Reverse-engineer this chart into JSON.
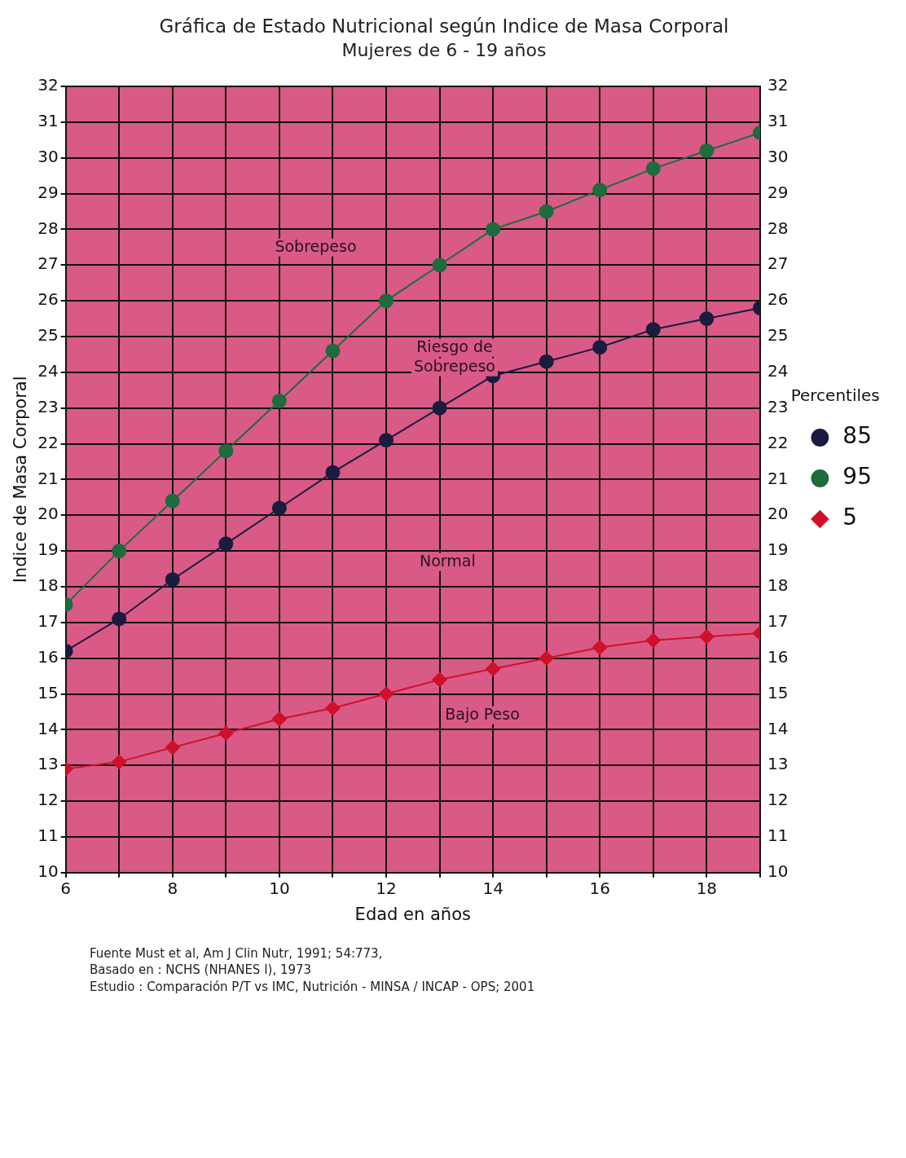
{
  "chart_data": {
    "type": "line",
    "title": "Gráfica de Estado Nutricional según Indice de Masa Corporal",
    "subtitle": "Mujeres de 6 - 19 años",
    "xlabel": "Edad en años",
    "ylabel": "Indice de Masa Corporal",
    "legend_title": "Percentiles",
    "x": [
      6,
      7,
      8,
      9,
      10,
      11,
      12,
      13,
      14,
      15,
      16,
      17,
      18,
      19
    ],
    "series": [
      {
        "name": "85",
        "color": "#1b1b3f",
        "marker": "circle",
        "values": [
          16.2,
          17.1,
          18.2,
          19.2,
          20.2,
          21.2,
          22.1,
          23.0,
          23.9,
          24.3,
          24.7,
          25.2,
          25.5,
          25.8
        ]
      },
      {
        "name": "95",
        "color": "#1e6b3c",
        "marker": "circle",
        "values": [
          17.5,
          19.0,
          20.4,
          21.8,
          23.2,
          24.6,
          26.0,
          27.0,
          28.0,
          28.5,
          29.1,
          29.7,
          30.2,
          30.7
        ]
      },
      {
        "name": "5",
        "color": "#d0102a",
        "marker": "diamond",
        "values": [
          12.9,
          13.1,
          13.5,
          13.9,
          14.3,
          14.6,
          15.0,
          15.4,
          15.7,
          16.0,
          16.3,
          16.5,
          16.6,
          16.7
        ]
      }
    ],
    "xlim": [
      6,
      19
    ],
    "xticks": [
      6,
      {
        "value": 7,
        "label": null
      },
      8,
      {
        "value": 9,
        "label": null
      },
      10,
      {
        "value": 11,
        "label": null
      },
      12,
      {
        "value": 13,
        "label": null
      },
      14,
      {
        "value": 15,
        "label": null
      },
      16,
      {
        "value": 17,
        "label": null
      },
      18,
      {
        "value": 19,
        "label": null
      }
    ],
    "ylim": [
      10,
      32
    ],
    "yticks": [
      10,
      11,
      12,
      13,
      14,
      15,
      16,
      17,
      18,
      19,
      20,
      21,
      22,
      23,
      24,
      25,
      26,
      27,
      28,
      29,
      30,
      31,
      32
    ],
    "y2lim": [
      10,
      32
    ],
    "y2ticks": [
      10,
      11,
      12,
      13,
      14,
      15,
      16,
      17,
      18,
      19,
      20,
      21,
      22,
      23,
      24,
      25,
      26,
      27,
      28,
      29,
      30,
      31,
      32
    ],
    "grid": true,
    "legend": "right",
    "line_style": "solid",
    "annotations": [
      "Sobrepeso",
      "Riesgo de Sobrepeso",
      "Normal",
      "Bajo Peso",
      "Fuente Must et al, Am J Clin Nutr, 1991; 54:773,",
      "Basado en : NCHS (NHANES I), 1973",
      "Estudio : Comparación P/T vs IMC, Nutrición - MINSA / INCAP - OPS; 2001"
    ]
  }
}
